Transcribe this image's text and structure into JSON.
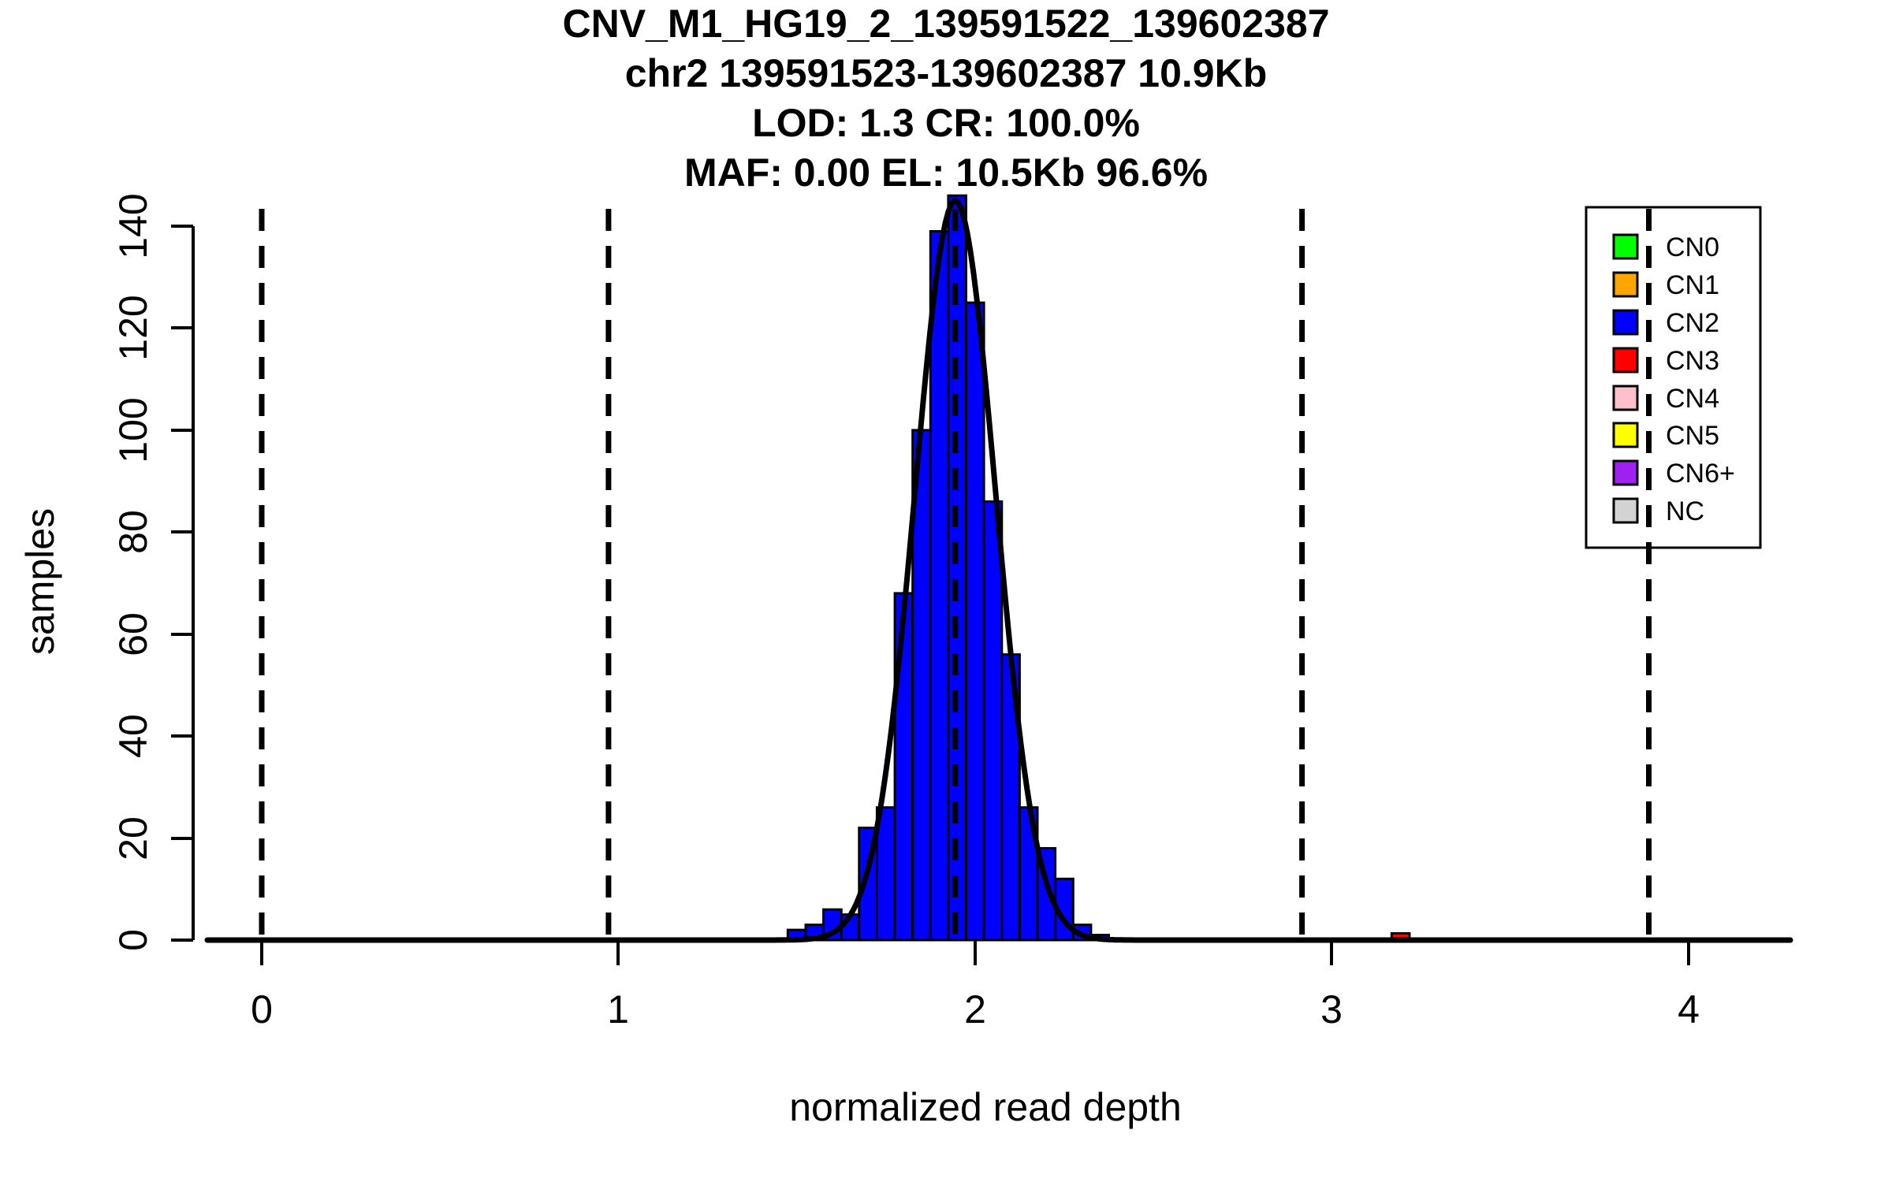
{
  "title": {
    "line1": "CNV_M1_HG19_2_139591522_139602387",
    "line2": "chr2 139591523-139602387 10.9Kb",
    "line3": "LOD: 1.3 CR: 100.0%",
    "line4": "MAF: 0.00 EL: 10.5Kb 96.6%"
  },
  "axes": {
    "x": {
      "label": "normalized read depth",
      "ticks": [
        "0",
        "1",
        "2",
        "3",
        "4"
      ]
    },
    "y": {
      "label": "samples",
      "ticks": [
        "0",
        "20",
        "40",
        "60",
        "80",
        "100",
        "120",
        "140"
      ]
    }
  },
  "legend": {
    "items": [
      {
        "label": "CN0",
        "color": "#00FF00"
      },
      {
        "label": "CN1",
        "color": "#FFA500"
      },
      {
        "label": "CN2",
        "color": "#0000FF"
      },
      {
        "label": "CN3",
        "color": "#FF0000"
      },
      {
        "label": "CN4",
        "color": "#FFC0CB"
      },
      {
        "label": "CN5",
        "color": "#FFFF00"
      },
      {
        "label": "CN6+",
        "color": "#A020F0"
      },
      {
        "label": "NC",
        "color": "#D3D3D3"
      }
    ]
  },
  "colors": {
    "bar_fill": "#0000FF",
    "bar_border": "#000000",
    "curve": "#000000",
    "dashed_line": "#000000",
    "background": "#FFFFFF"
  },
  "chart_data": {
    "type": "bar",
    "subtype": "histogram",
    "title": "CNV_M1_HG19_2_139591522_139602387 / chr2 139591523-139602387 10.9Kb / LOD: 1.3 CR: 100.0% / MAF: 0.00 EL: 10.5Kb 96.6%",
    "xlabel": "normalized read depth",
    "ylabel": "samples",
    "xlim": [
      -0.15,
      4.29
    ],
    "ylim": [
      0,
      146
    ],
    "x_ticks": [
      0,
      1,
      2,
      3,
      4
    ],
    "y_ticks": [
      0,
      20,
      40,
      60,
      80,
      100,
      120,
      140
    ],
    "grid": false,
    "legend_position": "top-right",
    "bin_start": 1.475,
    "bin_width": 0.05,
    "counts": [
      2,
      3,
      6,
      5,
      22,
      26,
      68,
      100,
      139,
      146,
      125,
      86,
      56,
      26,
      18,
      12,
      3,
      1
    ],
    "series_label": "CN2",
    "outlier_bars": [
      {
        "x_start": 3.168,
        "x_end": 3.218,
        "count": 1,
        "class": "CN3",
        "color": "#FF0000"
      }
    ],
    "gaussian_fit": {
      "mu": 1.9445,
      "sigma": 0.113,
      "amplitude": 145
    },
    "dashed_lines_x": [
      0,
      0.9722,
      1.9445,
      2.9167,
      3.8889
    ]
  }
}
